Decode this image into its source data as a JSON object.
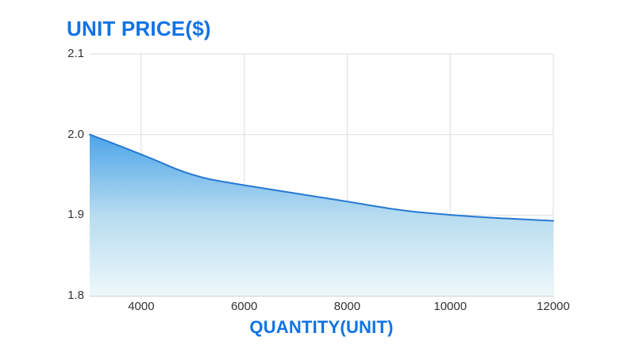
{
  "chart": {
    "y_axis_title": "UNIT PRICE($)",
    "x_axis_title": "QUANTITY(UNIT)"
  },
  "chart_data": {
    "type": "area",
    "title": "",
    "xlabel": "QUANTITY(UNIT)",
    "ylabel": "UNIT PRICE($)",
    "x": [
      3000,
      4000,
      5000,
      6000,
      7000,
      8000,
      9000,
      10000,
      11000,
      12000
    ],
    "y": [
      2.0,
      1.976,
      1.948,
      1.937,
      1.927,
      1.917,
      1.906,
      1.9,
      1.896,
      1.893
    ],
    "xlim": [
      3000,
      12000
    ],
    "ylim": [
      1.8,
      2.1
    ],
    "x_ticks": [
      4000,
      6000,
      8000,
      10000,
      12000
    ],
    "y_ticks": [
      1.8,
      1.9,
      2.0,
      2.1
    ],
    "grid": true,
    "legend": "none",
    "colors": {
      "accent_text": "#1173e4",
      "line": "#2679d2",
      "area_top": "#4da4e9",
      "area_mid": "#b7dcf0",
      "area_bottom": "#eef8fa",
      "gridline": "#e2e2e2",
      "axis_line": "#bfbfbf",
      "tick_text": "#333333"
    }
  }
}
